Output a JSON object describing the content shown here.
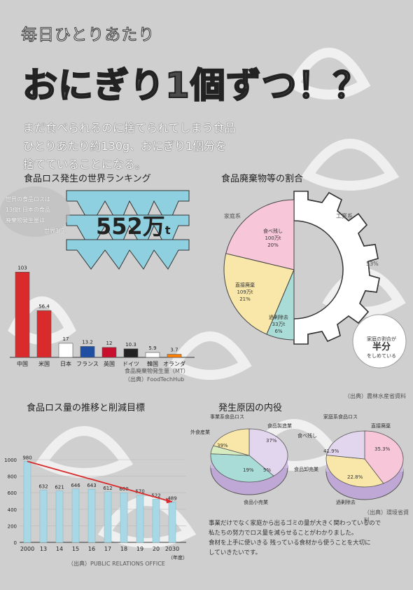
{
  "title": {
    "sub": "毎日ひとりあたり",
    "main": "おにぎり1個ずつ！？"
  },
  "lead": [
    "まだ食べられるのに捨てられてしまう食品",
    "ひとりあたり約130g、おにぎり1個分を",
    "捨てていることになる。"
  ],
  "ranking": {
    "heading": "食品ロス発生の世界ランキング",
    "note": [
      "世界の食品ロスは",
      "13億t 日本の食品",
      "廃棄物発生量は",
      "世界3位。"
    ],
    "big_value": "552万",
    "big_unit": "t",
    "unit_label": "食品廃棄物発生量（MT）",
    "source": "（出典）FoodTechHub"
  },
  "colors": {
    "pink": "#f7c6d8",
    "yellow": "#f8e7a8",
    "teal": "#a9dcd6",
    "lavender": "#e2d6ee",
    "red": "#d92b2b",
    "bar_blue": "#a8d8e6"
  },
  "chart_data": [
    {
      "type": "bar",
      "categories": [
        "中国",
        "米国",
        "日本",
        "フランス",
        "英国",
        "ドイツ",
        "韓国",
        "オランダ"
      ],
      "values": [
        103,
        56.4,
        17,
        13.2,
        12,
        10.3,
        5.9,
        3.7
      ],
      "value_labels": [
        "103",
        "56.4",
        "17",
        "13.2",
        "12",
        "10.3",
        "5.9",
        "3.7"
      ],
      "ylim": [
        0,
        110
      ]
    },
    {
      "type": "pie",
      "labels": [
        "食べ残し",
        "直接廃棄",
        "過剰除去",
        "工業系"
      ],
      "values": [
        20,
        21,
        6,
        53
      ]
    },
    {
      "type": "bar",
      "categories": [
        "2000",
        "13",
        "14",
        "15",
        "16",
        "17",
        "18",
        "19",
        "20",
        "2030"
      ],
      "values": [
        980,
        632,
        621,
        646,
        643,
        612,
        600,
        570,
        522,
        489
      ],
      "value_labels": [
        "980",
        "632",
        "621",
        "646",
        "643",
        "612",
        "600",
        "570",
        "522",
        "489"
      ],
      "ylim": [
        0,
        1000
      ],
      "yticks": [
        "0",
        "200",
        "400",
        "600",
        "800",
        "1000"
      ],
      "xlabel_note": "（年度）"
    },
    {
      "type": "pie",
      "title": "事業系食品ロス",
      "labels": [
        "外食産業",
        "食品製造業",
        "食品卸売業",
        "食品小売業"
      ],
      "values": [
        39,
        37,
        5,
        19
      ]
    },
    {
      "type": "pie",
      "title": "家庭系食品ロス",
      "labels": [
        "食べ残し",
        "直接廃棄",
        "過剰除去"
      ],
      "values": [
        41.9,
        35.3,
        22.8
      ]
    }
  ],
  "waste_share": {
    "heading": "食品廃棄物等の割合",
    "labels": {
      "household": "家庭系",
      "industry": "工業系",
      "industry_pct": "53%"
    },
    "slices": [
      {
        "name": "食べ残し",
        "value_label": "100万t",
        "pct_label": "20%"
      },
      {
        "name": "直接廃棄",
        "value_label": "109万t",
        "pct_label": "21%"
      },
      {
        "name": "過剰除去",
        "value_label": "33万t",
        "pct_label": "6%"
      }
    ],
    "half_note": [
      "家庭の割合が",
      "半分",
      "をしめている"
    ],
    "source": "（出典）農林水産省資料"
  },
  "trend": {
    "heading": "食品ロス量の推移と削減目標",
    "source": "（出典）PUBLIC RELATIONS OFFICE"
  },
  "causes": {
    "heading": "発生原因の内役",
    "business": {
      "title": "事業系食品ロス",
      "labels": {
        "dining": "外食産業",
        "manufacturing": "食品製造業",
        "wholesale": "食品卸売業",
        "retail": "食品小売業"
      },
      "pcts": {
        "dining": "39%",
        "manufacturing": "37%",
        "retail": "19%",
        "wholesale": "5%"
      }
    },
    "household": {
      "title": "家庭系食品ロス",
      "labels": {
        "leftover": "食べ残し",
        "direct": "直接廃棄",
        "excess": "過剰除去"
      },
      "pcts": {
        "leftover": "41.9%",
        "direct": "35.3%",
        "excess": "22.8%"
      }
    },
    "source": "（出典）環境省資料"
  },
  "closing": [
    "事業だけでなく家庭から出るゴミの量が大きく関わっているので",
    "私たちの努力でロス量を減らせることがわかりました。",
    "食材を上手に使いきる 残っている食材から使うことを大切に",
    "していきたいです。"
  ]
}
